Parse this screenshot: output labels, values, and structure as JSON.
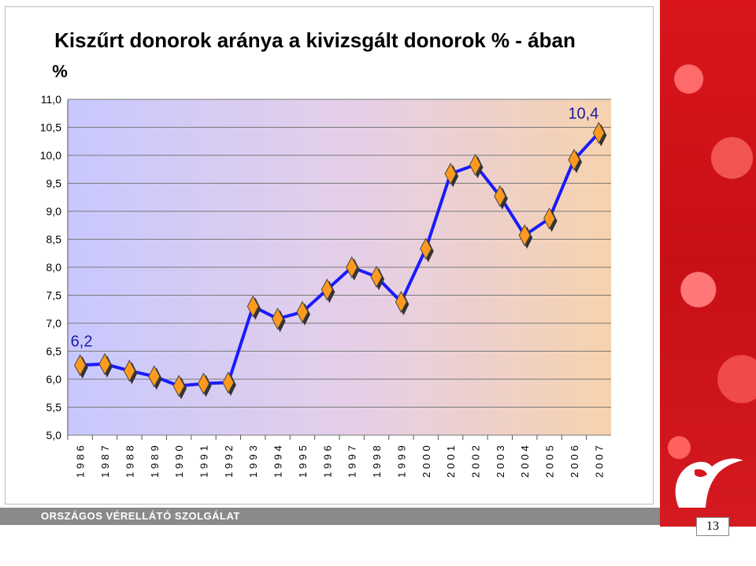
{
  "chart_data": {
    "type": "line",
    "title": "Kiszűrt donorok aránya a kivizsgált donorok % - ában",
    "ylabel": "%",
    "xlabel": "",
    "ylim": [
      5.0,
      11.0
    ],
    "yticks": [
      "11,0",
      "10,5",
      "10,0",
      "9,5",
      "9,0",
      "8,5",
      "8,0",
      "7,5",
      "7,0",
      "6,5",
      "6,0",
      "5,5",
      "5,0"
    ],
    "categories": [
      "1986",
      "1987",
      "1988",
      "1989",
      "1990",
      "1991",
      "1992",
      "1993",
      "1994",
      "1995",
      "1996",
      "1997",
      "1998",
      "1999",
      "2000",
      "2001",
      "2002",
      "2003",
      "2004",
      "2005",
      "2006",
      "2007"
    ],
    "values": [
      6.25,
      6.27,
      6.15,
      6.05,
      5.88,
      5.92,
      5.94,
      7.3,
      7.08,
      7.2,
      7.6,
      8.0,
      7.83,
      7.38,
      8.33,
      9.67,
      9.83,
      9.27,
      8.57,
      8.87,
      9.92,
      10.4
    ],
    "annotations": [
      "6,2",
      "10,4"
    ],
    "grid": true,
    "colors": {
      "line": "#1a1aff",
      "marker": "#ff9a1f",
      "marker_edge": "#444444"
    }
  },
  "footer": {
    "org": "ORSZÁGOS VÉRELLÁTÓ SZOLGÁLAT",
    "page": "13"
  }
}
